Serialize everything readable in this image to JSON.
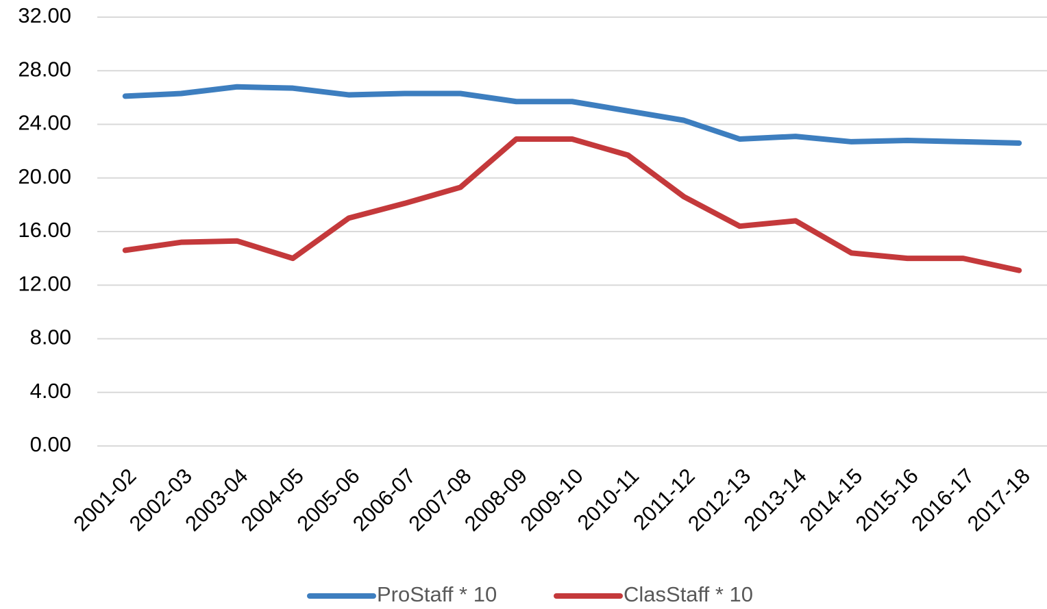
{
  "chart_data": {
    "type": "line",
    "categories": [
      "2001-02",
      "2002-03",
      "2003-04",
      "2004-05",
      "2005-06",
      "2006-07",
      "2007-08",
      "2008-09",
      "2009-10",
      "2010-11",
      "2011-12",
      "2012-13",
      "2013-14",
      "2014-15",
      "2015-16",
      "2016-17",
      "2017-18"
    ],
    "series": [
      {
        "name": "ProStaff * 10",
        "color": "#3d7ebf",
        "values": [
          26.1,
          26.3,
          26.8,
          26.7,
          26.2,
          26.3,
          26.3,
          25.7,
          25.7,
          25.0,
          24.3,
          22.9,
          23.1,
          22.7,
          22.8,
          22.7,
          22.6
        ]
      },
      {
        "name": "ClasStaff * 10",
        "color": "#c4393b",
        "values": [
          14.6,
          15.2,
          15.3,
          14.0,
          17.0,
          18.1,
          19.3,
          22.9,
          22.9,
          21.7,
          18.6,
          16.4,
          16.8,
          14.4,
          14.0,
          14.0,
          13.1
        ]
      }
    ],
    "ylim": [
      0,
      32
    ],
    "yticks": [
      {
        "value": 0,
        "label": "0.00"
      },
      {
        "value": 4,
        "label": "4.00"
      },
      {
        "value": 8,
        "label": "8.00"
      },
      {
        "value": 12,
        "label": "12.00"
      },
      {
        "value": 16,
        "label": "16.00"
      },
      {
        "value": 20,
        "label": "20.00"
      },
      {
        "value": 24,
        "label": "24.00"
      },
      {
        "value": 28,
        "label": "28.00"
      },
      {
        "value": 32,
        "label": "32.00"
      }
    ],
    "grid": true,
    "legend": "bottom"
  }
}
